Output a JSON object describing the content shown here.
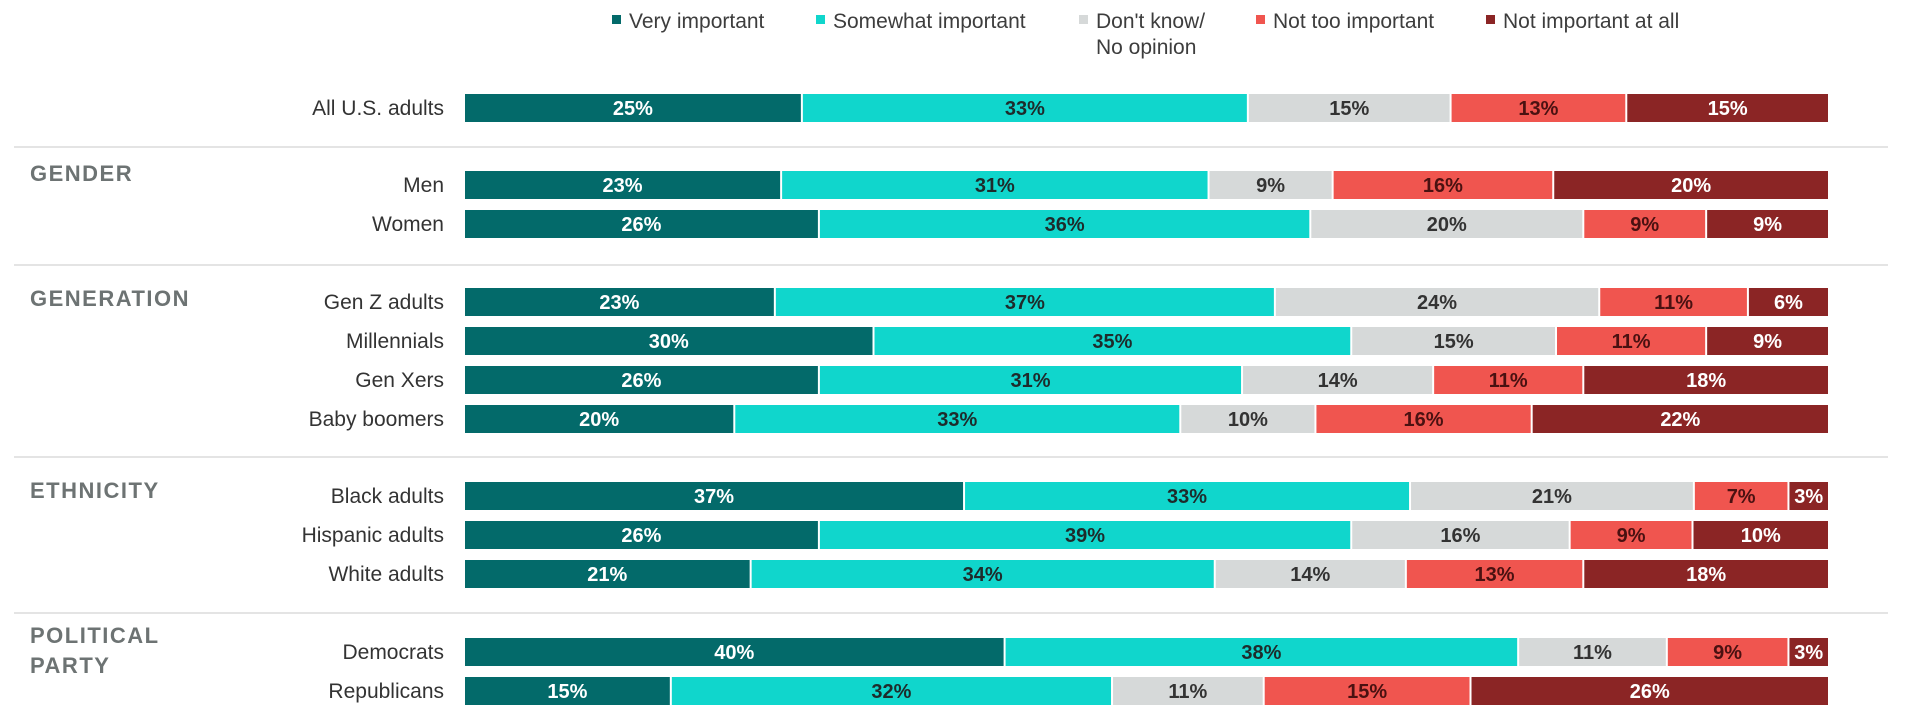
{
  "chart_data": {
    "type": "bar",
    "orientation": "horizontal",
    "stacked": true,
    "legend_placement": "top",
    "xlim": [
      0,
      100
    ],
    "legend": [
      {
        "lines": [
          "Very important"
        ],
        "color": "#036a6a"
      },
      {
        "lines": [
          "Somewhat important"
        ],
        "color": "#10d6cc"
      },
      {
        "lines": [
          "Don't know/",
          "No opinion"
        ],
        "color": "#d6d9d9"
      },
      {
        "lines": [
          "Not too important"
        ],
        "color": "#f0554f"
      },
      {
        "lines": [
          "Not important at all"
        ],
        "color": "#8b2525"
      }
    ],
    "series": [
      {
        "name": "Very important",
        "color": "#036a6a",
        "text_color": "#ffffff"
      },
      {
        "name": "Somewhat important",
        "color": "#10d6cc",
        "text_color": "#1e2b2b"
      },
      {
        "name": "Don't know/ No opinion",
        "color": "#d6d9d9",
        "text_color": "#333333"
      },
      {
        "name": "Not too important",
        "color": "#f0554f",
        "text_color": "#4a1111"
      },
      {
        "name": "Not important at all",
        "color": "#8b2525",
        "text_color": "#ffffff"
      }
    ],
    "groups": [
      {
        "label": [],
        "rows": [
          {
            "label": "All U.S. adults",
            "values": [
              25,
              33,
              15,
              13,
              15
            ]
          }
        ]
      },
      {
        "label": [
          "GENDER"
        ],
        "rows": [
          {
            "label": "Men",
            "values": [
              23,
              31,
              9,
              16,
              20
            ]
          },
          {
            "label": "Women",
            "values": [
              26,
              36,
              20,
              9,
              9
            ]
          }
        ]
      },
      {
        "label": [
          "GENERATION"
        ],
        "rows": [
          {
            "label": "Gen Z adults",
            "values": [
              23,
              37,
              24,
              11,
              6
            ]
          },
          {
            "label": "Millennials",
            "values": [
              30,
              35,
              15,
              11,
              9
            ]
          },
          {
            "label": "Gen Xers",
            "values": [
              26,
              31,
              14,
              11,
              18
            ]
          },
          {
            "label": "Baby boomers",
            "values": [
              20,
              33,
              10,
              16,
              22
            ]
          }
        ]
      },
      {
        "label": [
          "ETHNICITY"
        ],
        "rows": [
          {
            "label": "Black adults",
            "values": [
              37,
              33,
              21,
              7,
              3
            ]
          },
          {
            "label": "Hispanic adults",
            "values": [
              26,
              39,
              16,
              9,
              10
            ]
          },
          {
            "label": "White adults",
            "values": [
              21,
              34,
              14,
              13,
              18
            ]
          }
        ]
      },
      {
        "label": [
          "POLITICAL",
          "PARTY"
        ],
        "rows": [
          {
            "label": "Democrats",
            "values": [
              40,
              38,
              11,
              9,
              3
            ]
          },
          {
            "label": "Republicans",
            "values": [
              15,
              32,
              11,
              15,
              26
            ]
          }
        ]
      }
    ]
  }
}
